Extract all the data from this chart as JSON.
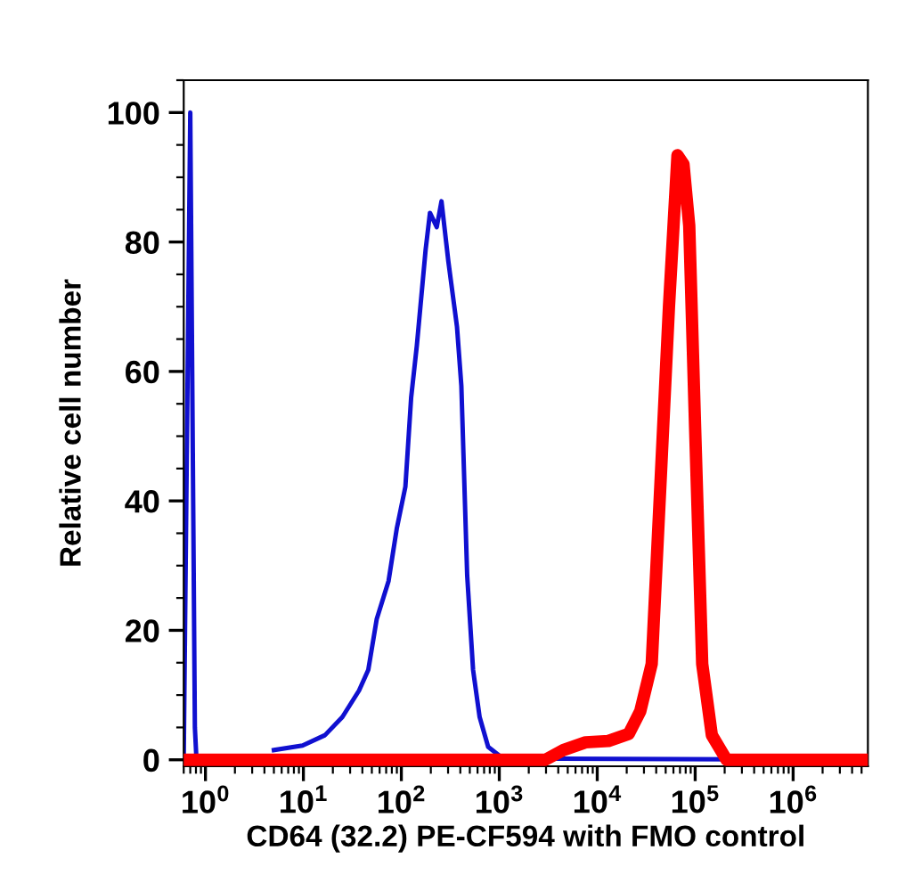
{
  "chart_data": {
    "type": "line",
    "xlabel": "CD64 (32.2) PE-CF594 with FMO control",
    "ylabel": "Relative cell number",
    "log": "x",
    "xlim": [
      0.6,
      5800000
    ],
    "ylim": [
      -1,
      105
    ],
    "xticks": [
      {
        "value": 1,
        "label": "10$^{0}$"
      },
      {
        "value": 10,
        "label": "10$^{1}$"
      },
      {
        "value": 100,
        "label": "10$^{2}$"
      },
      {
        "value": 1000,
        "label": "10$^{3}$"
      },
      {
        "value": 10000,
        "label": "10$^{4}$"
      },
      {
        "value": 100000,
        "label": "10$^{5}$"
      },
      {
        "value": 1000000,
        "label": "10$^{6}$"
      }
    ],
    "yticks": [
      0,
      20,
      40,
      60,
      80,
      100
    ],
    "grid": false,
    "legend": false,
    "marker": "none",
    "line_style": "solid",
    "series": [
      {
        "color": "#1010d0",
        "x": [
          0.6,
          0.7,
          0.78,
          0.81,
          2.6,
          5,
          9.8,
          16.6,
          25,
          37,
          46,
          56,
          74,
          90,
          110,
          126,
          144,
          177,
          196,
          230,
          257,
          302,
          370,
          410,
          470,
          540,
          630,
          770,
          1090,
          5800000
        ],
        "values": [
          0,
          100,
          5,
          0,
          null,
          1.5,
          2.2,
          3.8,
          6.6,
          10.7,
          13.9,
          21.7,
          27.6,
          35.8,
          42.2,
          56,
          64,
          78.8,
          84.5,
          82.3,
          86.3,
          77,
          66.9,
          57.8,
          28.5,
          13.9,
          6.6,
          2,
          0.2,
          0
        ]
      },
      {
        "color": "#ff0000",
        "x": [
          0.6,
          2950,
          4500,
          7600,
          13000,
          21000,
          27500,
          36000,
          44000,
          54000,
          66000,
          76000,
          87000,
          100000,
          118000,
          148000,
          209000,
          5800000
        ],
        "values": [
          0,
          0,
          1.5,
          2.7,
          2.9,
          4,
          7.5,
          14.8,
          42,
          70,
          93.4,
          92,
          82.5,
          51,
          14.8,
          3.8,
          0,
          0
        ]
      }
    ]
  }
}
